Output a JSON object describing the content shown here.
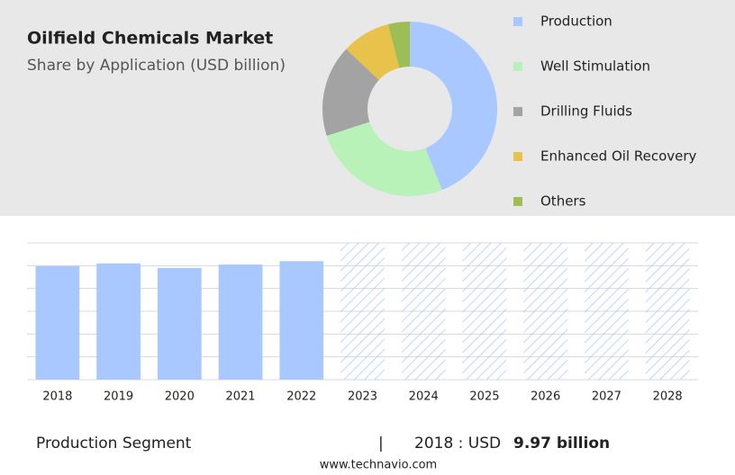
{
  "chart_data": [
    {
      "type": "pie",
      "donut": true,
      "title": "Oilfield Chemicals Market",
      "subtitle": "Share by Application (USD billion)",
      "categories": [
        "Production",
        "Well Stimulation",
        "Drilling Fluids",
        "Enhanced Oil Recovery",
        "Others"
      ],
      "values": [
        44,
        26,
        17,
        9,
        4
      ],
      "colors": [
        "#a8c8ff",
        "#b8f2b8",
        "#a3a3a3",
        "#e9c24c",
        "#9dbd55"
      ]
    },
    {
      "type": "bar",
      "categories": [
        "2018",
        "2019",
        "2020",
        "2021",
        "2022",
        "2023",
        "2024",
        "2025",
        "2026",
        "2027",
        "2028"
      ],
      "values": [
        9.97,
        10.2,
        9.8,
        10.1,
        10.4,
        null,
        null,
        null,
        null,
        null,
        null
      ],
      "color": "#a8c8ff",
      "ylim": [
        0,
        12
      ],
      "yticks": [
        0,
        2,
        4,
        6,
        8,
        10,
        12
      ],
      "grid": true
    }
  ],
  "footer": {
    "segment": "Production Segment",
    "separator": "|",
    "year_label": "2018 : USD",
    "value_label": "9.97 billion",
    "source": "www.technavio.com"
  }
}
